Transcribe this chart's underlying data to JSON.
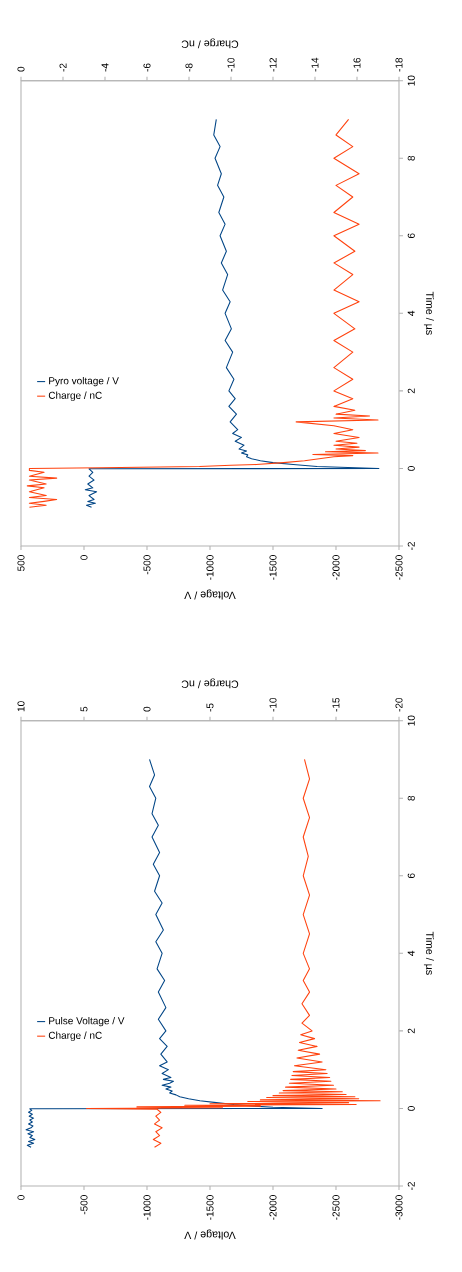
{
  "chart_data": [
    {
      "type": "line",
      "xlabel": "Voltage / V",
      "x2label": "Charge / nC",
      "ylabel": "Time / µs",
      "xlim": [
        500,
        -2500
      ],
      "xticks": [
        500,
        0,
        -500,
        -1000,
        -1500,
        -2000,
        -2500
      ],
      "x2lim": [
        0,
        -18
      ],
      "x2ticks": [
        0,
        -2,
        -4,
        -6,
        -8,
        -10,
        -12,
        -14,
        -16,
        -18
      ],
      "ylim": [
        -2,
        10
      ],
      "yticks": [
        -2,
        0,
        2,
        4,
        6,
        8,
        10
      ],
      "legend": "left",
      "series": [
        {
          "name": "Pyro voltage / V",
          "color": "#004586",
          "values": [
            -1.0,
            -0.95,
            -0.9,
            -0.85,
            -0.8,
            -0.7,
            -0.6,
            -0.55,
            -0.5,
            -0.4,
            -0.3,
            -0.2,
            -0.1,
            -0.01,
            0.0,
            0.05,
            0.1,
            0.15,
            0.2,
            0.25,
            0.3,
            0.35,
            0.4,
            0.45,
            0.5,
            0.6,
            0.7,
            0.8,
            0.9,
            1.0,
            1.2,
            1.4,
            1.6,
            1.8,
            2.0,
            2.3,
            2.6,
            3.0,
            3.3,
            3.6,
            4.0,
            4.3,
            4.6,
            5.0,
            5.3,
            5.6,
            6.0,
            6.3,
            6.6,
            7.0,
            7.3,
            7.6,
            8.0,
            8.3,
            8.6,
            9.0
          ],
          "x": [
            -60,
            -20,
            -90,
            -30,
            -80,
            -40,
            -100,
            -10,
            -70,
            -30,
            -80,
            -40,
            -70,
            -40,
            -2340,
            -1850,
            -1660,
            -1500,
            -1400,
            -1330,
            -1290,
            -1300,
            -1250,
            -1290,
            -1230,
            -1270,
            -1200,
            -1250,
            -1180,
            -1220,
            -1160,
            -1210,
            -1150,
            -1200,
            -1150,
            -1190,
            -1130,
            -1180,
            -1120,
            -1170,
            -1120,
            -1160,
            -1100,
            -1140,
            -1090,
            -1130,
            -1080,
            -1120,
            -1070,
            -1110,
            -1060,
            -1090,
            -1040,
            -1080,
            -1030,
            -1050
          ]
        },
        {
          "name": "Charge / nC",
          "color": "#ff420e",
          "axis": "x2",
          "values": [
            -1.0,
            -0.95,
            -0.9,
            -0.85,
            -0.8,
            -0.75,
            -0.7,
            -0.6,
            -0.5,
            -0.45,
            -0.4,
            -0.3,
            -0.25,
            -0.2,
            -0.1,
            -0.05,
            0.0,
            0.02,
            0.05,
            0.08,
            0.1,
            0.15,
            0.2,
            0.25,
            0.3,
            0.33,
            0.36,
            0.4,
            0.43,
            0.46,
            0.5,
            0.55,
            0.6,
            0.65,
            0.7,
            0.8,
            0.9,
            1.0,
            1.1,
            1.2,
            1.25,
            1.3,
            1.35,
            1.4,
            1.5,
            1.6,
            1.8,
            2.0,
            2.3,
            2.6,
            3.0,
            3.3,
            3.6,
            4.0,
            4.3,
            4.6,
            5.0,
            5.3,
            5.6,
            6.0,
            6.3,
            6.6,
            7.0,
            7.3,
            7.6,
            8.0,
            8.3,
            8.6,
            9.0
          ],
          "x": [
            -0.4,
            -1.2,
            -0.4,
            -1.1,
            -1.7,
            -0.4,
            -1.2,
            -0.4,
            -1.1,
            -0.3,
            -1.2,
            -0.4,
            -1.7,
            -0.4,
            -1.1,
            -0.4,
            -0.4,
            -3.8,
            -8.5,
            -10,
            -11.2,
            -12.5,
            -13.5,
            -14.2,
            -14.9,
            -15.8,
            -13.9,
            -17.0,
            -14.5,
            -16.4,
            -15.0,
            -16.1,
            -14.9,
            -16.0,
            -15.0,
            -16.1,
            -14.9,
            -15.8,
            -14.9,
            -13.1,
            -17.0,
            -14.9,
            -16.6,
            -15.0,
            -15.9,
            -14.9,
            -15.8,
            -14.9,
            -15.8,
            -14.9,
            -15.8,
            -14.9,
            -15.9,
            -14.9,
            -16.1,
            -14.9,
            -15.8,
            -14.9,
            -15.9,
            -14.9,
            -16.1,
            -14.9,
            -15.8,
            -15.0,
            -16.1,
            -14.9,
            -15.8,
            -15.0,
            -15.6
          ]
        }
      ]
    },
    {
      "type": "line",
      "xlabel": "Voltage / V",
      "x2label": "Charge / nC",
      "ylabel": "Time / µs",
      "xlim": [
        0,
        -3000
      ],
      "xticks": [
        0,
        -500,
        -1000,
        -1500,
        -2000,
        -2500,
        -3000
      ],
      "x2lim": [
        10,
        -20
      ],
      "x2ticks": [
        10,
        5,
        0,
        -5,
        -10,
        -15,
        -20
      ],
      "ylim": [
        -2,
        10
      ],
      "yticks": [
        -2,
        0,
        2,
        4,
        6,
        8,
        10
      ],
      "legend": "left",
      "series": [
        {
          "name": "Pulse Voltage / V",
          "color": "#004586",
          "values": [
            -1.0,
            -0.95,
            -0.9,
            -0.85,
            -0.8,
            -0.75,
            -0.7,
            -0.65,
            -0.6,
            -0.55,
            -0.5,
            -0.45,
            -0.4,
            -0.35,
            -0.3,
            -0.25,
            -0.2,
            -0.15,
            -0.1,
            -0.05,
            -0.01,
            0.0,
            0.03,
            0.06,
            0.1,
            0.15,
            0.2,
            0.25,
            0.3,
            0.35,
            0.4,
            0.45,
            0.5,
            0.55,
            0.6,
            0.65,
            0.7,
            0.75,
            0.8,
            0.9,
            1.0,
            1.1,
            1.2,
            1.4,
            1.6,
            1.8,
            2.0,
            2.3,
            2.6,
            3.0,
            3.3,
            3.6,
            4.0,
            4.3,
            4.6,
            5.0,
            5.3,
            5.6,
            6.0,
            6.3,
            6.6,
            7.0,
            7.3,
            7.6,
            8.0,
            8.3,
            8.6,
            9.0
          ],
          "x": [
            -80,
            -50,
            -100,
            -60,
            -110,
            -70,
            -90,
            -55,
            -100,
            -40,
            -80,
            -95,
            -60,
            -90,
            -70,
            -100,
            -65,
            -90,
            -60,
            -85,
            -70,
            -2390,
            -2000,
            -1850,
            -1690,
            -1550,
            -1420,
            -1330,
            -1260,
            -1230,
            -1180,
            -1200,
            -1150,
            -1190,
            -1120,
            -1180,
            -1210,
            -1130,
            -1190,
            -1120,
            -1170,
            -1100,
            -1160,
            -1110,
            -1160,
            -1100,
            -1150,
            -1090,
            -1150,
            -1090,
            -1140,
            -1080,
            -1120,
            -1070,
            -1130,
            -1070,
            -1120,
            -1060,
            -1100,
            -1050,
            -1100,
            -1040,
            -1090,
            -1040,
            -1070,
            -1020,
            -1060,
            -1020
          ]
        },
        {
          "name": "Charge / nC",
          "color": "#ff420e",
          "axis": "x2",
          "values": [
            -1.0,
            -0.9,
            -0.8,
            -0.7,
            -0.6,
            -0.5,
            -0.4,
            -0.3,
            -0.2,
            -0.1,
            -0.02,
            0.0,
            0.02,
            0.04,
            0.06,
            0.08,
            0.1,
            0.12,
            0.15,
            0.18,
            0.2,
            0.22,
            0.25,
            0.28,
            0.3,
            0.33,
            0.36,
            0.4,
            0.43,
            0.46,
            0.5,
            0.55,
            0.6,
            0.65,
            0.7,
            0.75,
            0.8,
            0.85,
            0.9,
            0.95,
            1.0,
            1.1,
            1.2,
            1.3,
            1.4,
            1.5,
            1.6,
            1.7,
            1.8,
            1.9,
            2.0,
            2.2,
            2.4,
            2.7,
            3.0,
            3.3,
            3.6,
            4.0,
            4.5,
            5.0,
            5.5,
            6.0,
            6.5,
            7.0,
            7.5,
            8.0,
            8.5,
            9.0
          ],
          "x": [
            -0.6,
            -1.1,
            -0.5,
            -1.0,
            -0.7,
            -1.2,
            -0.6,
            -1.0,
            -0.7,
            -1.1,
            -0.8,
            4.8,
            -6,
            0.8,
            -9,
            -3,
            -16.6,
            -5,
            -16,
            -8,
            -18.5,
            -9,
            -16.8,
            -9.5,
            -16.5,
            -10,
            -15.8,
            -10.5,
            -15.5,
            -10.8,
            -15,
            -11,
            -14.8,
            -11.3,
            -14.6,
            -11.4,
            -14.5,
            -11.5,
            -14.3,
            -11.6,
            -14.2,
            -11.7,
            -13.9,
            -11.9,
            -13.7,
            -12.0,
            -13.5,
            -12.1,
            -13.3,
            -12.2,
            -13.1,
            -12.3,
            -12.9,
            -12.3,
            -12.9,
            -12.4,
            -12.9,
            -12.4,
            -12.9,
            -12.4,
            -12.9,
            -12.4,
            -12.8,
            -12.4,
            -12.9,
            -12.4,
            -12.9,
            -12.5
          ]
        }
      ]
    }
  ]
}
